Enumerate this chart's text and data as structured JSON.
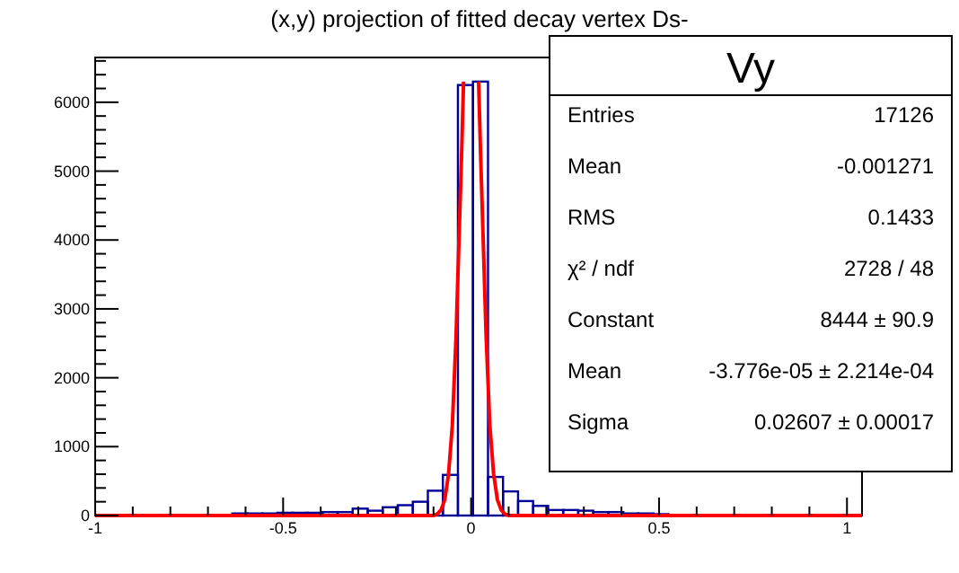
{
  "chart_data": {
    "type": "histogram",
    "title": "(x,y) projection of fitted decay vertex Ds-",
    "bins": [
      -0.995,
      -0.955,
      -0.915,
      -0.875,
      -0.835,
      -0.795,
      -0.755,
      -0.715,
      -0.675,
      -0.635,
      -0.595,
      -0.555,
      -0.515,
      -0.475,
      -0.435,
      -0.395,
      -0.355,
      -0.315,
      -0.275,
      -0.235,
      -0.195,
      -0.155,
      -0.115,
      -0.075,
      -0.035,
      0.005,
      0.045,
      0.085,
      0.125,
      0.165,
      0.205,
      0.245,
      0.285,
      0.325,
      0.365,
      0.405,
      0.445,
      0.485,
      0.525,
      0.565,
      0.605,
      0.645,
      0.685,
      0.725,
      0.765,
      0.805,
      0.845,
      0.885,
      0.925,
      0.965,
      1.005
    ],
    "series": [
      {
        "color": "#000099",
        "values": [
          0,
          0,
          0,
          0,
          0,
          0,
          0,
          0,
          0,
          30,
          30,
          30,
          40,
          40,
          40,
          50,
          50,
          100,
          70,
          120,
          150,
          200,
          360,
          590,
          6250,
          6300,
          560,
          350,
          210,
          140,
          80,
          80,
          70,
          50,
          50,
          30,
          30,
          20,
          0,
          0,
          0,
          0,
          0,
          0,
          0,
          0,
          0,
          0,
          0,
          0
        ]
      },
      {
        "type": "line",
        "color": "#ff0000",
        "x": [
          -1,
          -0.1,
          -0.09,
          -0.08,
          -0.07,
          -0.06,
          -0.05,
          -0.04,
          -0.03,
          -0.025,
          -0.02,
          -0.015,
          0,
          0.015,
          0.02,
          0.025,
          0.03,
          0.04,
          0.05,
          0.06,
          0.07,
          0.08,
          0.09,
          0.1,
          1.04
        ],
        "values": [
          0,
          0,
          20,
          80,
          230,
          600,
          1300,
          2600,
          4400,
          5300,
          6300,
          null,
          null,
          null,
          6300,
          5300,
          4400,
          2600,
          1300,
          600,
          230,
          80,
          20,
          0,
          0
        ]
      }
    ],
    "xlim": [
      -1,
      1.04
    ],
    "xticks": [
      -1,
      {
        "value": -0.9,
        "label": null
      },
      {
        "value": -0.8,
        "label": null
      },
      {
        "value": -0.7,
        "label": null
      },
      {
        "value": -0.6,
        "label": null
      },
      -0.5,
      {
        "value": -0.4,
        "label": null
      },
      {
        "value": -0.3,
        "label": null
      },
      {
        "value": -0.2,
        "label": null
      },
      {
        "value": -0.1,
        "label": null
      },
      0,
      {
        "value": 0.1,
        "label": null
      },
      {
        "value": 0.2,
        "label": null
      },
      {
        "value": 0.3,
        "label": null
      },
      {
        "value": 0.4,
        "label": null
      },
      0.5,
      {
        "value": 0.6,
        "label": null
      },
      {
        "value": 0.7,
        "label": null
      },
      {
        "value": 0.8,
        "label": null
      },
      {
        "value": 0.9,
        "label": null
      },
      1
    ],
    "ylim": [
      0,
      6650
    ],
    "yticks": [
      0,
      {
        "value": 200,
        "label": null
      },
      {
        "value": 400,
        "label": null
      },
      {
        "value": 600,
        "label": null
      },
      {
        "value": 800,
        "label": null
      },
      1000,
      {
        "value": 1200,
        "label": null
      },
      {
        "value": 1400,
        "label": null
      },
      {
        "value": 1600,
        "label": null
      },
      {
        "value": 1800,
        "label": null
      },
      2000,
      {
        "value": 2200,
        "label": null
      },
      {
        "value": 2400,
        "label": null
      },
      {
        "value": 2600,
        "label": null
      },
      {
        "value": 2800,
        "label": null
      },
      3000,
      {
        "value": 3200,
        "label": null
      },
      {
        "value": 3400,
        "label": null
      },
      {
        "value": 3600,
        "label": null
      },
      {
        "value": 3800,
        "label": null
      },
      4000,
      {
        "value": 4200,
        "label": null
      },
      {
        "value": 4400,
        "label": null
      },
      {
        "value": 4600,
        "label": null
      },
      {
        "value": 4800,
        "label": null
      },
      5000,
      {
        "value": 5200,
        "label": null
      },
      {
        "value": 5400,
        "label": null
      },
      {
        "value": 5600,
        "label": null
      },
      {
        "value": 5800,
        "label": null
      },
      6000,
      {
        "value": 6200,
        "label": null
      },
      {
        "value": 6400,
        "label": null
      },
      {
        "value": 6600,
        "label": null
      }
    ],
    "annotations": [
      "Vy",
      "Entries",
      "17126",
      "Mean",
      "-0.001271",
      "RMS",
      "0.1433",
      "χ² / ndf",
      "2728 / 48",
      "Constant",
      "8444 ± 90.9",
      "Mean",
      "-3.776e-05 ± 2.214e-04",
      "Sigma",
      "0.02607 ± 0.00017"
    ]
  }
}
